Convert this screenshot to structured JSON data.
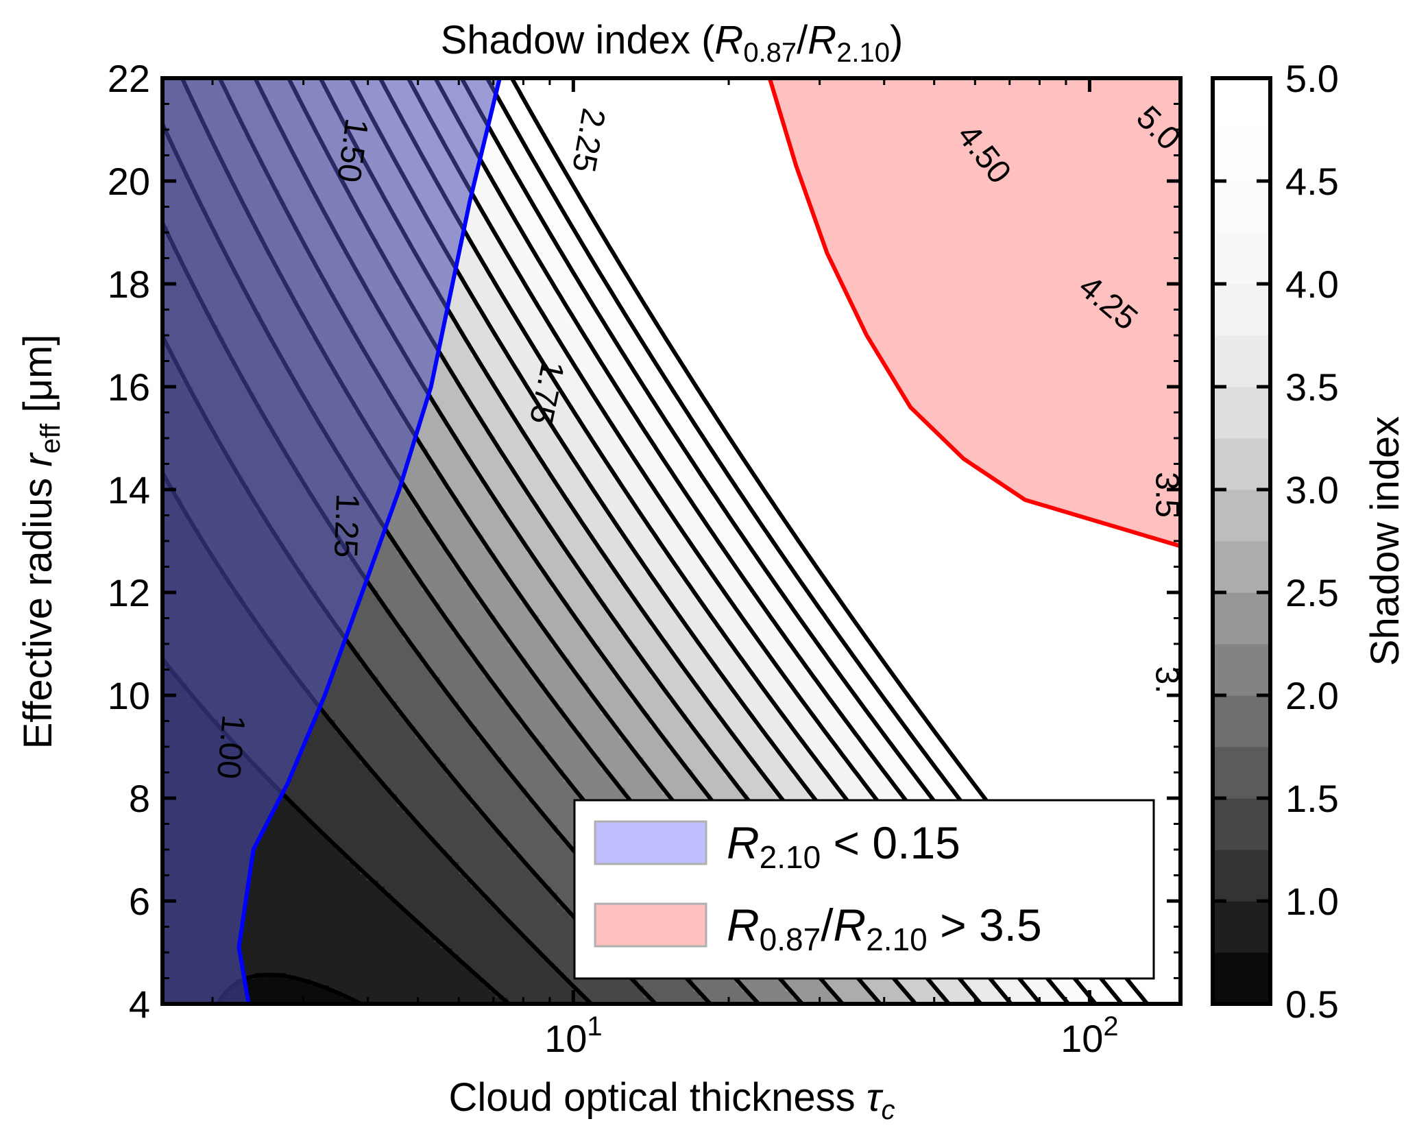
{
  "chart_data": {
    "type": "contour",
    "title": "Shadow index (R0.87/R2.10)",
    "title_parts": {
      "prefix": "Shadow index (",
      "r1": "R",
      "r1_sub": "0.87",
      "slash": "/",
      "r2": "R",
      "r2_sub": "2.10",
      "suffix": ")"
    },
    "xlabel": "Cloud optical thickness τc",
    "xlabel_parts": {
      "text": "Cloud optical thickness ",
      "symbol": "τ",
      "sub": "c"
    },
    "ylabel": "Effective radius reff [μm]",
    "ylabel_parts": {
      "text1": "Effective radius ",
      "symbol": "r",
      "sub": "eff",
      "text2": " [μm]"
    },
    "x_scale": "log",
    "xlim": [
      1.6,
      150
    ],
    "ylim": [
      4,
      22
    ],
    "x_ticks": [
      {
        "value": 10,
        "base": "10",
        "exp": "1"
      },
      {
        "value": 100,
        "base": "10",
        "exp": "2"
      }
    ],
    "y_ticks": [
      4,
      6,
      8,
      10,
      12,
      14,
      16,
      18,
      20,
      22
    ],
    "y_tick_labels": [
      "4",
      "6",
      "8",
      "10",
      "12",
      "14",
      "16",
      "18",
      "20",
      "22"
    ],
    "contour_levels": [
      0.75,
      1.0,
      1.25,
      1.5,
      1.75,
      2.0,
      2.25,
      2.5,
      2.75,
      3.0,
      3.25,
      3.5,
      3.75,
      4.0,
      4.25,
      4.5,
      4.75,
      5.0
    ],
    "contour_labels": [
      {
        "text": "1.00",
        "x": 2.15,
        "y": 9.0,
        "rot": 95
      },
      {
        "text": "1.25",
        "x": 3.6,
        "y": 13.3,
        "rot": 92
      },
      {
        "text": "1.50",
        "x": 3.7,
        "y": 20.6,
        "rot": 98
      },
      {
        "text": "1.75",
        "x": 8.8,
        "y": 15.9,
        "rot": 102
      },
      {
        "text": "2.25",
        "x": 10.6,
        "y": 20.8,
        "rot": 100
      },
      {
        "text": "4.50",
        "x": 62,
        "y": 20.5,
        "rot": 52
      },
      {
        "text": "4.25",
        "x": 108,
        "y": 17.6,
        "rot": 40
      },
      {
        "text": "5.0",
        "x": 135,
        "y": 21.0,
        "rot": 45
      },
      {
        "text": "3.5",
        "x": 140,
        "y": 13.9,
        "rot": 90
      },
      {
        "text": "3.",
        "x": 140,
        "y": 10.3,
        "rot": 90
      }
    ],
    "blue_boundary_R210_eq_0_15": {
      "x": [
        2.35,
        2.25,
        2.4,
        2.8,
        3.3,
        3.9,
        4.6,
        5.3,
        6.3,
        7.2
      ],
      "y": [
        4.0,
        5.1,
        7.0,
        8.3,
        10.0,
        12.0,
        14.0,
        16.0,
        19.6,
        22.0
      ]
    },
    "red_boundary_ratio_eq_3_5": {
      "x": [
        24,
        27,
        31,
        37,
        45,
        57,
        75,
        150
      ],
      "y": [
        22.0,
        20.3,
        18.6,
        17.0,
        15.6,
        14.6,
        13.8,
        12.9
      ]
    },
    "colorbar": {
      "label": "Shadow index",
      "min": 0.5,
      "max": 5.0,
      "ticks": [
        "0.5",
        "1.0",
        "1.5",
        "2.0",
        "2.5",
        "3.0",
        "3.5",
        "4.0",
        "4.5",
        "5.0"
      ],
      "colors": [
        "#0b0b0b",
        "#1f1f1f",
        "#333333",
        "#474747",
        "#5b5b5b",
        "#6f6f6f",
        "#838383",
        "#979797",
        "#acacac",
        "#bdbdbd",
        "#cecece",
        "#dedede",
        "#eaeaea",
        "#f3f3f3",
        "#f8f8f8",
        "#fbfbfb",
        "#fdfdfd",
        "#ffffff"
      ]
    },
    "legend": [
      {
        "label": "R2.10 < 0.15",
        "parts": {
          "r": "R",
          "sub": "2.10",
          "rest": " < 0.15"
        },
        "color": "#0000ff",
        "patch": "#bfbffd"
      },
      {
        "label": "R0.87/R2.10 > 3.5",
        "parts": {
          "r1": "R",
          "sub1": "0.87",
          "slash": "/",
          "r2": "R",
          "sub2": "2.10",
          "rest": " > 3.5"
        },
        "color": "#ff0000",
        "patch": "#ffc0c0"
      }
    ],
    "overlay_colors": {
      "blue_region": "#4a4ab6",
      "red_region": "#ffb5b5",
      "blue_line": "#0000ff",
      "red_line": "#ff0000"
    },
    "legend_placement": "lower-right",
    "grid": false
  }
}
